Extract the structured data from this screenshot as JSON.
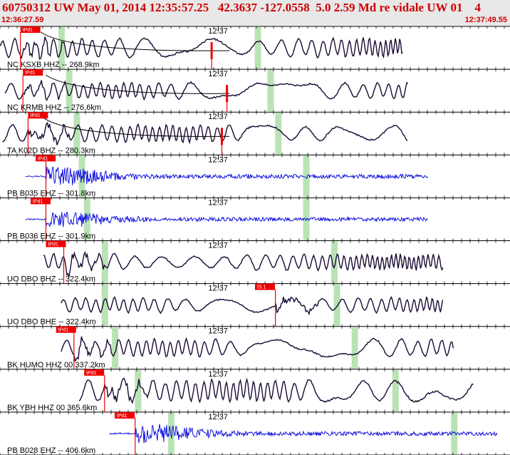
{
  "header": {
    "title": "60750312 UW May 01, 2014 12:35:57.25   42.3637 -127.0558  5.0 2.59 Md re vidale UW 01    4",
    "time_start": "12:36:27.59",
    "time_end": "12:37:49.55"
  },
  "colors": {
    "header_bg": "#e8e8e8",
    "header_text": "#cc0000",
    "pick": "#ee0000",
    "trace_dark": "#1a0a33",
    "trace_blue": "#0000dd",
    "green_band": "#b9e3b5",
    "curve": "#000000"
  },
  "time_label": "12:37",
  "panels": [
    {
      "label": "NC KSXB HHZ -- 268.9km",
      "pick_label": "tPd1",
      "pick_label_at": 0.04,
      "pick": 0.04,
      "pick2": 0.415,
      "green": [
        0.12,
        0.505
      ],
      "color": "dark",
      "kind": "long",
      "start": 0.0,
      "end": 0.79,
      "amp": 0.7,
      "curve": true,
      "seed": 1
    },
    {
      "label": "NC KRMB HHZ -- 276.6km",
      "pick_label": "tPd1",
      "pick_label_at": 0.045,
      "pick": 0.045,
      "pick2": 0.445,
      "green": [
        0.135,
        0.53
      ],
      "color": "dark",
      "kind": "long",
      "start": 0.01,
      "end": 0.8,
      "amp": 0.6,
      "curve": true,
      "seed": 2
    },
    {
      "label": "TA K02D BHZ -- 280.3km",
      "pick_label": "tPd1",
      "pick_label_at": 0.055,
      "pick": 0.055,
      "pick2": 0.435,
      "green": [
        0.15,
        0.545
      ],
      "color": "dark",
      "kind": "long",
      "start": 0.005,
      "end": 0.8,
      "amp": 0.65,
      "curve": true,
      "seed": 3
    },
    {
      "label": "PB B035 EHZ -- 301.8km",
      "pick_label": "tPd1",
      "pick_label_at": 0.07,
      "pick": 0.09,
      "pick2": null,
      "green": [
        0.16,
        0.6
      ],
      "color": "blue",
      "kind": "hf",
      "start": 0.05,
      "end": 0.84,
      "amp": 0.5,
      "curve": false,
      "seed": 4
    },
    {
      "label": "PB B036 EHZ -- 301.9km",
      "pick_label": "tPd1",
      "pick_label_at": 0.06,
      "pick": 0.09,
      "pick2": null,
      "green": [
        0.17,
        0.6
      ],
      "color": "blue",
      "kind": "hf",
      "start": 0.05,
      "end": 0.84,
      "amp": 0.45,
      "curve": false,
      "seed": 5
    },
    {
      "label": "UO DBO BHZ -- 322.4km",
      "pick_label": "tPd1",
      "pick_label_at": 0.09,
      "pick": 0.125,
      "pick2": null,
      "green": [
        0.205,
        0.655
      ],
      "color": "dark",
      "kind": "long",
      "start": 0.085,
      "end": 0.87,
      "amp": 0.6,
      "curve": false,
      "seed": 6
    },
    {
      "label": "UO DBO BHE -- 322.4km",
      "pick_label": "tS 1",
      "pick_label_at": 0.5,
      "pick": 0.54,
      "pick2": null,
      "green": [
        0.205,
        0.66
      ],
      "color": "dark",
      "kind": "long",
      "start": 0.12,
      "end": 0.87,
      "amp": 0.55,
      "curve": false,
      "seed": 7
    },
    {
      "label": "BK HUMO HHZ 00 337.2km",
      "pick_label": "tPd1",
      "pick_label_at": 0.11,
      "pick": 0.145,
      "pick2": null,
      "green": [
        0.225,
        0.695
      ],
      "color": "dark",
      "kind": "long",
      "start": 0.12,
      "end": 0.89,
      "amp": 0.65,
      "curve": false,
      "seed": 8
    },
    {
      "label": "BK YBH HHZ 00 365.6km",
      "pick_label": "tPd1",
      "pick_label_at": 0.165,
      "pick": 0.205,
      "pick2": null,
      "green": [
        0.27,
        0.775
      ],
      "color": "dark",
      "kind": "long",
      "start": 0.155,
      "end": 0.93,
      "amp": 0.8,
      "curve": false,
      "seed": 9
    },
    {
      "label": "PB B028 EHZ -- 406.6km",
      "pick_label": "tPd1",
      "pick_label_at": 0.225,
      "pick": 0.265,
      "pick2": null,
      "green": [
        0.335,
        0.89
      ],
      "color": "blue",
      "kind": "hf",
      "start": 0.215,
      "end": 0.975,
      "amp": 0.5,
      "curve": false,
      "seed": 10
    }
  ]
}
